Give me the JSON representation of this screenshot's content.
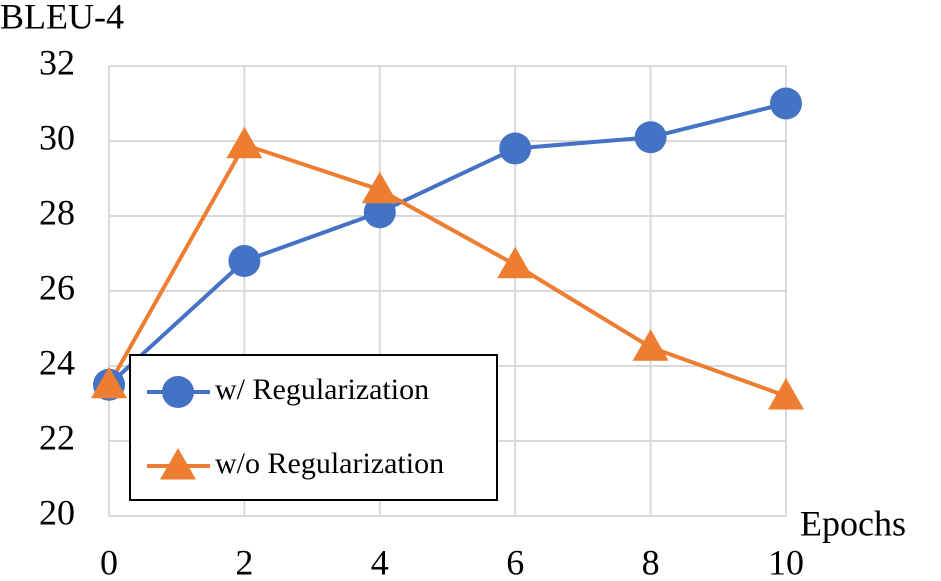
{
  "chart_data": {
    "type": "line",
    "y_label": "BLEU-4",
    "x_label": "Epochs",
    "x": [
      0,
      2,
      4,
      6,
      8,
      10
    ],
    "series": [
      {
        "name": "w/ Regularization",
        "color": "#4472c4",
        "marker": "circle",
        "values": [
          23.5,
          26.8,
          28.1,
          29.8,
          30.1,
          31.0
        ]
      },
      {
        "name": "w/o Regularization",
        "color": "#ed7d31",
        "marker": "triangle",
        "values": [
          23.5,
          29.9,
          28.7,
          26.7,
          24.5,
          23.2
        ]
      }
    ],
    "xlim": [
      0,
      10
    ],
    "xticks": [
      0,
      2,
      4,
      6,
      8,
      10
    ],
    "ylim": [
      20,
      32
    ],
    "yticks": [
      20,
      22,
      24,
      26,
      28,
      30,
      32
    ],
    "grid": true,
    "legend": "lower left"
  }
}
